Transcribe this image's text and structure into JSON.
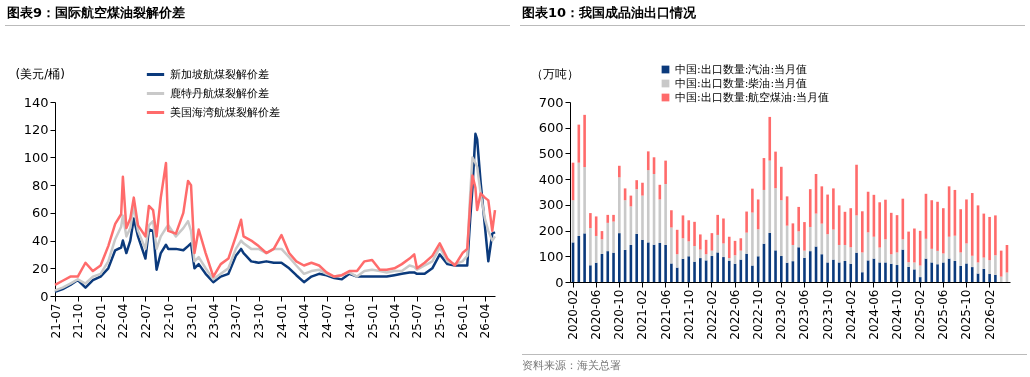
{
  "chart_data": [
    {
      "type": "line",
      "title": "图表9：国际航空煤油裂解价差",
      "ylabel": "(美元/桶)",
      "x": [
        "2021-07",
        "2021-08",
        "2021-09",
        "2021-10",
        "2021-11",
        "2021-12",
        "2022-01",
        "2022-02",
        "2022-03",
        "2022-03-25",
        "2022-04",
        "2022-04-15",
        "2022-05",
        "2022-05-15",
        "2022-06",
        "2022-07",
        "2022-07-15",
        "2022-08",
        "2022-08-15",
        "2022-09",
        "2022-09-22",
        "2022-10",
        "2022-11",
        "2022-12",
        "2022-12-20",
        "2023-01",
        "2023-01-15",
        "2023-02",
        "2023-03",
        "2023-04",
        "2023-05",
        "2023-06",
        "2023-07",
        "2023-07-22",
        "2023-08",
        "2023-09",
        "2023-10",
        "2023-11",
        "2023-12",
        "2024-01",
        "2024-02",
        "2024-03",
        "2024-04",
        "2024-05",
        "2024-06",
        "2024-07",
        "2024-08",
        "2024-09",
        "2024-10",
        "2024-11",
        "2024-12",
        "2025-01",
        "2025-02",
        "2025-03",
        "2025-04",
        "2025-05",
        "2025-06",
        "2025-06-20",
        "2025-07",
        "2025-08",
        "2025-09",
        "2025-10",
        "2025-11",
        "2025-12",
        "2026-01",
        "2026-01-20",
        "2026-02",
        "2026-02-10",
        "2026-02-22",
        "2026-03",
        "2026-03-15",
        "2026-04",
        "2026-04-15",
        "2026-05",
        "2026-05-12"
      ],
      "series": [
        {
          "name": "新加坡航煤裂解价差",
          "color": "#0b3a7c",
          "values": [
            3,
            5,
            8,
            11.5,
            6,
            11.5,
            14,
            20,
            33,
            35,
            40,
            31,
            40,
            56,
            43,
            27,
            48,
            47,
            19,
            31,
            37,
            34,
            34,
            33,
            36,
            38,
            20,
            23,
            16,
            10,
            14,
            16,
            29,
            34,
            31,
            25,
            24,
            25,
            24,
            24,
            20,
            15,
            10,
            14,
            16,
            15,
            13,
            12,
            16,
            14,
            14,
            14,
            14,
            14,
            15,
            16,
            17,
            17,
            16,
            16,
            20,
            30,
            23,
            22,
            22,
            22,
            56,
            78,
            117,
            113,
            82,
            51,
            25,
            45,
            46
          ]
        },
        {
          "name": "鹿特丹航煤裂解价差",
          "color": "#c9c9c9",
          "values": [
            4,
            6,
            9,
            12,
            9,
            14,
            16,
            25,
            41,
            50,
            58,
            43,
            49,
            65,
            47,
            34,
            51,
            54,
            34,
            43,
            49,
            51,
            43,
            49,
            54,
            47,
            25,
            28,
            20,
            12,
            16,
            20,
            34,
            40,
            38,
            34,
            34,
            31,
            34,
            34,
            28,
            22,
            16,
            18,
            19,
            16,
            14,
            15,
            17,
            14,
            18,
            19,
            18,
            17,
            18,
            18,
            22,
            21,
            19,
            22,
            25,
            35,
            25,
            23,
            25,
            29,
            74,
            100,
            96,
            93,
            74,
            56,
            47,
            40,
            43
          ]
        },
        {
          "name": "美国海湾航煤裂解价差",
          "color": "#ff6b6b",
          "values": [
            8,
            11,
            14,
            14,
            24,
            18,
            22,
            36,
            52,
            59,
            86,
            49,
            56,
            71,
            51,
            43,
            65,
            62,
            43,
            71,
            96,
            47,
            45,
            60,
            83,
            80,
            31,
            48,
            31,
            14,
            23,
            27,
            43,
            55,
            43,
            40,
            36,
            31,
            34,
            44,
            31,
            25,
            22,
            24,
            22,
            17,
            14,
            15,
            18,
            18,
            25,
            26,
            19,
            19,
            20,
            23,
            27,
            30,
            20,
            24,
            29,
            38,
            27,
            22,
            31,
            34,
            67,
            87,
            78,
            62,
            74,
            71,
            69,
            47,
            62
          ]
        }
      ],
      "xlim": [
        "2021-07",
        "2026-05-12"
      ],
      "xticks": [
        {
          "value": "2021-07",
          "label": "21-07"
        },
        {
          "value": "2021-10",
          "label": "21-10"
        },
        {
          "value": "2022-01",
          "label": "22-01"
        },
        {
          "value": "2022-04",
          "label": "22-04"
        },
        {
          "value": "2022-07",
          "label": "22-07"
        },
        {
          "value": "2022-10",
          "label": "22-10"
        },
        {
          "value": "2023-01",
          "label": "23-01"
        },
        {
          "value": "2023-04",
          "label": "23-04"
        },
        {
          "value": "2023-07",
          "label": "23-07"
        },
        {
          "value": "2023-10",
          "label": "23-10"
        },
        {
          "value": "2024-01",
          "label": "24-01"
        },
        {
          "value": "2024-04",
          "label": "24-04"
        },
        {
          "value": "2024-07",
          "label": "24-07"
        },
        {
          "value": "2024-10",
          "label": "24-10"
        },
        {
          "value": "2025-01",
          "label": "25-01"
        },
        {
          "value": "2025-04",
          "label": "25-04"
        },
        {
          "value": "2025-07",
          "label": "25-07"
        },
        {
          "value": "2025-10",
          "label": "25-10"
        },
        {
          "value": "2026-01",
          "label": "26-01"
        },
        {
          "value": "2026-04",
          "label": "26-04"
        }
      ],
      "ylim": [
        0,
        140
      ],
      "yticks": [
        0,
        20,
        40,
        60,
        80,
        100,
        120,
        140
      ],
      "legend": "top"
    },
    {
      "type": "bar",
      "stacked": true,
      "title": "图表10：我国成品油出口情况",
      "ylabel": "（万吨）",
      "categories": [
        "2020-02",
        null,
        null,
        null,
        "2020-06",
        null,
        null,
        null,
        "2020-10",
        null,
        null,
        null,
        "2021-02",
        null,
        null,
        null,
        "2021-06",
        null,
        null,
        null,
        "2021-10",
        null,
        null,
        null,
        "2022-02",
        null,
        null,
        null,
        "2022-06",
        null,
        null,
        null,
        "2022-10",
        null,
        null,
        null,
        "2023-02",
        null,
        null,
        null,
        "2023-06",
        null,
        null,
        null,
        "2023-10",
        null,
        null,
        null,
        "2024-02",
        null,
        null,
        null,
        "2024-06",
        null,
        null,
        null,
        "2024-10",
        null,
        null,
        null,
        "2025-02",
        null,
        null,
        null,
        "2025-06",
        null,
        null,
        null,
        "2025-10",
        null,
        null,
        null,
        "2026-02",
        null,
        null,
        null
      ],
      "series": [
        {
          "name": "中国:出口数量:汽油:当月值",
          "color": "#0b3a7c",
          "values": [
            154,
            179,
            189,
            65,
            75,
            109,
            120,
            114,
            190,
            125,
            144,
            187,
            164,
            154,
            145,
            152,
            144,
            72,
            56,
            90,
            100,
            79,
            93,
            84,
            101,
            115,
            97,
            83,
            71,
            87,
            110,
            64,
            100,
            149,
            191,
            123,
            101,
            75,
            81,
            135,
            94,
            120,
            138,
            108,
            76,
            87,
            76,
            82,
            71,
            114,
            38,
            84,
            91,
            76,
            76,
            71,
            66,
            126,
            59,
            49,
            19,
            91,
            76,
            69,
            76,
            91,
            82,
            63,
            72,
            58,
            33,
            51,
            31,
            28,
            0,
            0
          ]
        },
        {
          "name": "中国:出口数量:柴油:当月值",
          "color": "#c9c9c9",
          "values": [
            164,
            285,
            258,
            145,
            104,
            57,
            110,
            121,
            217,
            193,
            150,
            174,
            172,
            281,
            275,
            169,
            237,
            140,
            52,
            80,
            58,
            61,
            33,
            24,
            21,
            68,
            53,
            10,
            33,
            35,
            82,
            206,
            105,
            209,
            281,
            242,
            217,
            144,
            63,
            62,
            28,
            94,
            128,
            119,
            110,
            117,
            68,
            62,
            64,
            145,
            77,
            109,
            85,
            58,
            90,
            37,
            49,
            40,
            18,
            27,
            45,
            77,
            53,
            52,
            35,
            85,
            98,
            52,
            78,
            44,
            43,
            44,
            54,
            76,
            21,
            37
          ]
        },
        {
          "name": "中国:出口数量:航空煤油:当月值",
          "color": "#ff6b6b",
          "values": [
            146,
            148,
            203,
            58,
            76,
            32,
            31,
            26,
            45,
            46,
            42,
            35,
            50,
            73,
            65,
            57,
            91,
            67,
            95,
            89,
            82,
            94,
            59,
            56,
            68,
            78,
            97,
            83,
            56,
            48,
            82,
            93,
            116,
            124,
            170,
            142,
            130,
            114,
            84,
            95,
            111,
            147,
            154,
            145,
            154,
            160,
            154,
            129,
            152,
            197,
            160,
            158,
            163,
            176,
            154,
            161,
            145,
            158,
            119,
            132,
            135,
            175,
            189,
            191,
            176,
            196,
            178,
            168,
            171,
            244,
            222,
            171,
            168,
            155,
            101,
            107
          ]
        }
      ],
      "ylim": [
        0,
        700
      ],
      "yticks": [
        0,
        100,
        200,
        300,
        400,
        500,
        600,
        700
      ],
      "legend": "top",
      "annotations": [
        "资料来源：海关总署"
      ]
    }
  ]
}
